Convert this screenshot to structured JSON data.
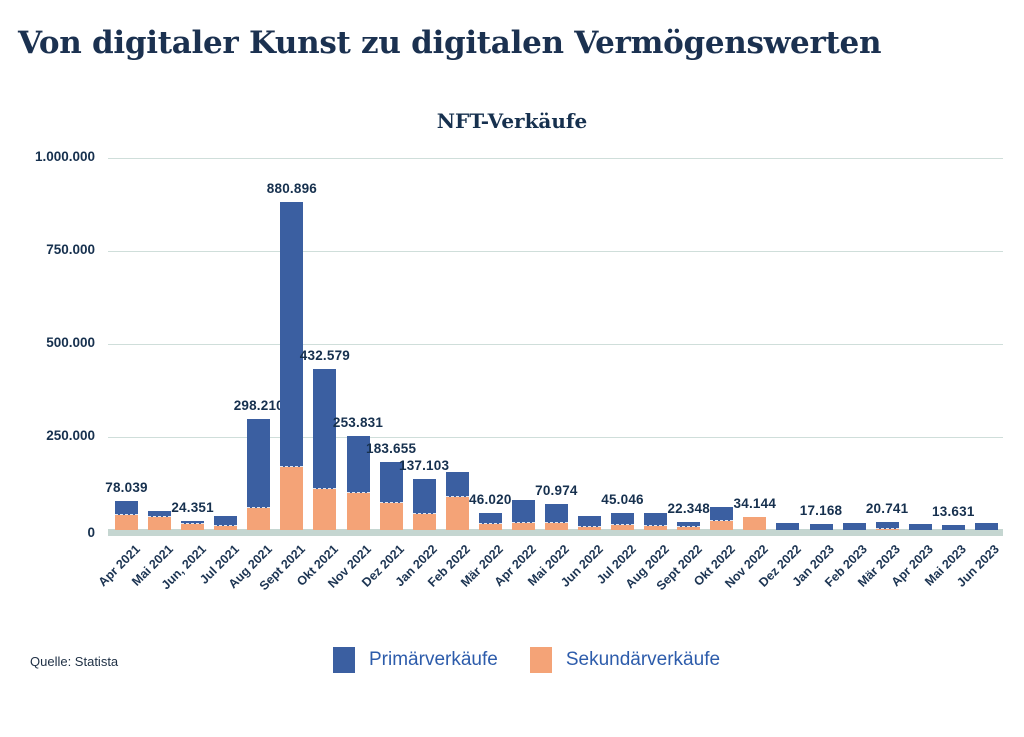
{
  "page": {
    "title": "Von digitaler Kunst zu digitalen Vermögenswerten",
    "source": "Quelle: Statista"
  },
  "colors": {
    "primary_blue": "#3b5fa1",
    "secondary_orange": "#f4a377",
    "gridline": "#cfdeda",
    "baseline_strip": "#c5d6d1",
    "text_navy": "#16304e",
    "legend_text_blue": "#2d5cab"
  },
  "chart_data": {
    "type": "bar",
    "stacked": true,
    "title": "NFT-Verkäufe",
    "xlabel": "",
    "ylabel": "",
    "ylim": [
      0,
      1000000
    ],
    "grid": true,
    "legend_position": "bottom-center",
    "categories": [
      "Apr 2021",
      "Mai 2021",
      "Jun, 2021",
      "Jul 2021",
      "Aug 2021",
      "Sept 2021",
      "Okt 2021",
      "Nov 2021",
      "Dez 2021",
      "Jan 2022",
      "Feb 2022",
      "Mär 2022",
      "Apr 2022",
      "Mai 2022",
      "Jun 2022",
      "Jul 2022",
      "Aug 2022",
      "Sept 2022",
      "Okt 2022",
      "Nov 2022",
      "Dez 2022",
      "Jan 2023",
      "Feb 2023",
      "Mär 2023",
      "Apr 2023",
      "Mai 2023",
      "Jun 2023"
    ],
    "series": [
      {
        "name": "Primärverkäufe",
        "color": "#3b5fa1",
        "values": [
          38039,
          15000,
          9351,
          28000,
          240210,
          710896,
          322579,
          153831,
          110655,
          95103,
          67000,
          30020,
          62000,
          52974,
          30000,
          32046,
          35000,
          14348,
          37000,
          0,
          18000,
          17168,
          18000,
          17741,
          15000,
          13631,
          19500
        ]
      },
      {
        "name": "Sekundärverkäufe",
        "color": "#f4a377",
        "values": [
          40000,
          35000,
          15000,
          10000,
          58000,
          170000,
          110000,
          100000,
          73000,
          42000,
          88000,
          16000,
          18000,
          18000,
          9000,
          13000,
          12000,
          8000,
          24000,
          34144,
          0,
          0,
          0,
          3000,
          0,
          0,
          0
        ]
      }
    ],
    "totals": [
      78039,
      50000,
      24351,
      38000,
      298210,
      880896,
      432579,
      253831,
      183655,
      137103,
      155000,
      46020,
      80000,
      70974,
      39000,
      45046,
      47000,
      22348,
      61000,
      34144,
      18000,
      17168,
      18000,
      20741,
      15000,
      13631,
      19500
    ],
    "data_labels": [
      "78.039",
      null,
      "24.351",
      null,
      "298.210",
      "880.896",
      "432.579",
      "253.831",
      "183.655",
      "137.103",
      null,
      "46.020",
      null,
      "70.974",
      null,
      "45.046",
      null,
      "22.348",
      null,
      "34.144",
      null,
      "17.168",
      null,
      "20.741",
      null,
      "13.631",
      null
    ],
    "y_axis": {
      "max": 1000000,
      "tick_values": [
        1000000,
        750000,
        500000,
        250000,
        0
      ],
      "tick_labels": [
        "1.000.000",
        "750.000",
        "500.000",
        "250.000",
        "0"
      ]
    }
  }
}
